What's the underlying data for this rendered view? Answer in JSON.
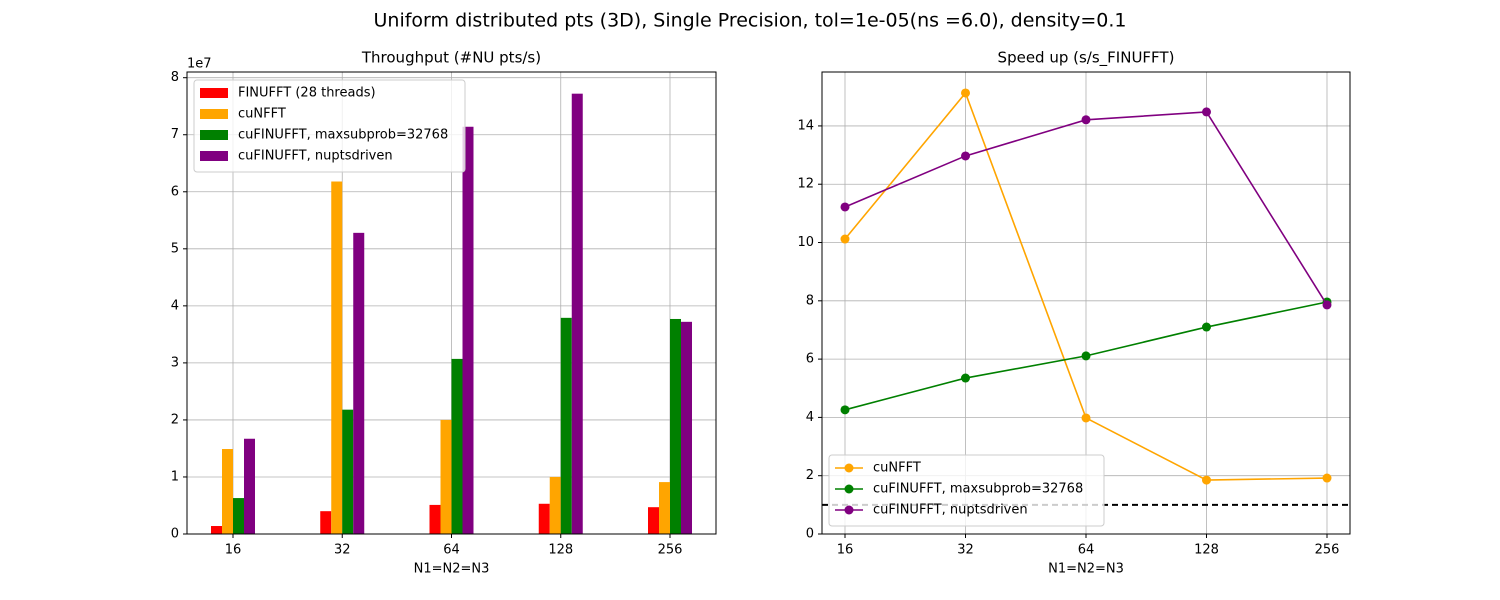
{
  "title": "Uniform distributed pts (3D), Single Precision, tol=1e-05(ns =6.0), density=0.1",
  "chart_data": [
    {
      "type": "bar",
      "title": "Throughput (#NU pts/s)",
      "x_label": "N1=N2=N3",
      "offset_label": "1e7",
      "categories": [
        "16",
        "32",
        "64",
        "128",
        "256"
      ],
      "series": [
        {
          "name": "FINUFFT (28 threads)",
          "color": "#ff0000",
          "values": [
            0.14,
            0.4,
            0.51,
            0.53,
            0.47
          ]
        },
        {
          "name": "cuNFFT",
          "color": "#ffa500",
          "values": [
            1.49,
            6.18,
            2.0,
            1.0,
            0.91
          ]
        },
        {
          "name": "cuFINUFFT, maxsubprob=32768",
          "color": "#008000",
          "values": [
            0.63,
            2.18,
            3.07,
            3.79,
            3.77
          ]
        },
        {
          "name": "cuFINUFFT, nuptsdriven",
          "color": "#800080",
          "values": [
            1.67,
            5.28,
            7.14,
            7.72,
            3.72
          ]
        }
      ],
      "ylim": [
        0,
        8.1
      ],
      "yticks": [
        0,
        1,
        2,
        3,
        4,
        5,
        6,
        7,
        8
      ],
      "grid": true,
      "legend": "upper-left"
    },
    {
      "type": "line",
      "title": "Speed up (s/s_FINUFFT)",
      "x_label": "N1=N2=N3",
      "categories": [
        "16",
        "32",
        "64",
        "128",
        "256"
      ],
      "series": [
        {
          "name": "cuNFFT",
          "color": "#ffa500",
          "values": [
            10.12,
            15.13,
            3.98,
            1.85,
            1.92
          ]
        },
        {
          "name": "cuFINUFFT, maxsubprob=32768",
          "color": "#008000",
          "values": [
            4.26,
            5.35,
            6.11,
            7.1,
            7.96
          ]
        },
        {
          "name": "cuFINUFFT, nuptsdriven",
          "color": "#800080",
          "values": [
            11.22,
            12.97,
            14.21,
            14.48,
            7.86
          ]
        }
      ],
      "hline": 1,
      "ylim": [
        0,
        15.85
      ],
      "yticks": [
        0,
        2,
        4,
        6,
        8,
        10,
        12,
        14
      ],
      "grid": true,
      "legend": "lower-left"
    }
  ]
}
